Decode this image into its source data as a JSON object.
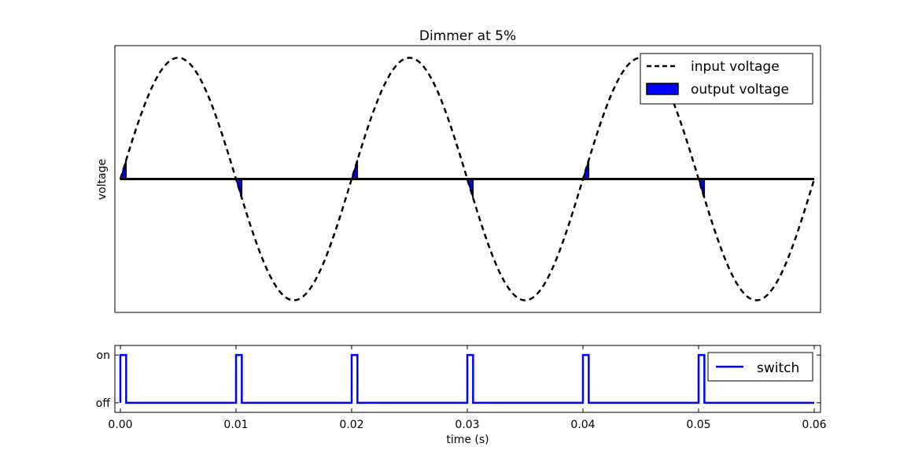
{
  "chart_data": [
    {
      "type": "line",
      "title": "Dimmer at 5%",
      "xlabel": "",
      "ylabel": "voltage",
      "xlim": [
        0,
        0.06
      ],
      "ylim": [
        -1.1,
        1.1
      ],
      "y_ticks_shown": false,
      "signal_frequency_hz": 50,
      "dimmer_percent": 5,
      "series": [
        {
          "name": "input voltage",
          "style": "dashed",
          "color": "#000000",
          "function": "sin(2*pi*50*t)",
          "amplitude": 1
        },
        {
          "name": "output voltage",
          "style": "filled",
          "color": "#0000ff",
          "on_intervals": [
            [
              0,
              0.0005
            ],
            [
              0.01,
              0.0105
            ],
            [
              0.02,
              0.0205
            ],
            [
              0.03,
              0.0305
            ],
            [
              0.04,
              0.0405
            ],
            [
              0.05,
              0.0505
            ]
          ]
        }
      ],
      "legend_placement": "top-right"
    },
    {
      "type": "line",
      "title": "",
      "xlabel": "time (s)",
      "ylabel": "",
      "xlim": [
        0,
        0.06
      ],
      "ylim": [
        -0.2,
        1.2
      ],
      "x_ticks": [
        "0.00",
        "0.01",
        "0.02",
        "0.03",
        "0.04",
        "0.05",
        "0.06"
      ],
      "x_tick_values": [
        0,
        0.01,
        0.02,
        0.03,
        0.04,
        0.05,
        0.06
      ],
      "y_ticks": [
        "off",
        "on"
      ],
      "y_tick_values": [
        0,
        1
      ],
      "series": [
        {
          "name": "switch",
          "color": "#0000ff",
          "on_intervals": [
            [
              0,
              0.0005
            ],
            [
              0.01,
              0.0105
            ],
            [
              0.02,
              0.0205
            ],
            [
              0.03,
              0.0305
            ],
            [
              0.04,
              0.0405
            ],
            [
              0.05,
              0.0505
            ]
          ]
        }
      ],
      "legend_placement": "top-right"
    }
  ]
}
